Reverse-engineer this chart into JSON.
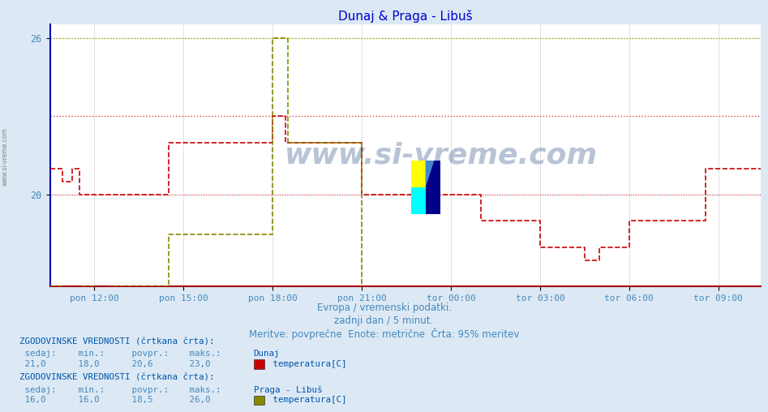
{
  "title": "Dunaj & Praga - Libuš",
  "title_color": "#0000cc",
  "bg_color": "#dce9f5",
  "plot_bg_color": "#ffffff",
  "grid_color": "#cccccc",
  "xlabel_text1": "Evropa / vremenski podatki.",
  "xlabel_text2": "zadnji dan / 5 minut.",
  "xlabel_text3": "Meritve: povprečne  Enote: metrične  Črta: 95% meritev",
  "xlabel_color": "#4488bb",
  "watermark": "www.si-vreme.com",
  "ylim_min": 16.5,
  "ylim_max": 26.5,
  "yticks": [
    20,
    26
  ],
  "ytick_labels": [
    "20",
    "26"
  ],
  "xtick_labels": [
    "pon 12:00",
    "pon 15:00",
    "pon 18:00",
    "pon 21:00",
    "tor 00:00",
    "tor 03:00",
    "tor 06:00",
    "tor 09:00"
  ],
  "dunaj_color": "#cc0000",
  "praga_color": "#888800",
  "dunaj_hist_color": "#dd4444",
  "praga_hist_color": "#aaaa00",
  "dunaj_sedaj": "21,0",
  "dunaj_min": "18,0",
  "dunaj_povpr": "20,6",
  "dunaj_maks": "23,0",
  "praga_sedaj": "16,0",
  "praga_min": "16,0",
  "praga_povpr": "18,5",
  "praga_maks": "26,0",
  "text_color": "#4488bb",
  "label_color": "#0055aa",
  "n_points": 288
}
